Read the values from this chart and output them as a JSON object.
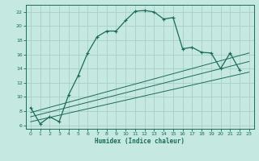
{
  "title": "",
  "xlabel": "Humidex (Indice chaleur)",
  "ylabel": "",
  "background_color": "#c5e8e0",
  "grid_color": "#a8cfc8",
  "line_color": "#1a6b5a",
  "xlim": [
    -0.5,
    23.5
  ],
  "ylim": [
    5.5,
    23
  ],
  "xticks": [
    0,
    1,
    2,
    3,
    4,
    5,
    6,
    7,
    8,
    9,
    10,
    11,
    12,
    13,
    14,
    15,
    16,
    17,
    18,
    19,
    20,
    21,
    22,
    23
  ],
  "yticks": [
    6,
    8,
    10,
    12,
    14,
    16,
    18,
    20,
    22
  ],
  "curve1_x": [
    0,
    1,
    2,
    3,
    4,
    5,
    6,
    7,
    8,
    9,
    10,
    11,
    12,
    13,
    14,
    15,
    16,
    17,
    18,
    19,
    20,
    21,
    22
  ],
  "curve1_y": [
    8.5,
    6.2,
    7.2,
    6.5,
    10.3,
    13.0,
    16.2,
    18.5,
    19.3,
    19.3,
    20.8,
    22.1,
    22.2,
    22.0,
    21.0,
    21.2,
    16.8,
    17.0,
    16.3,
    16.2,
    14.0,
    16.2,
    13.8
  ],
  "line2_x": [
    0,
    23
  ],
  "line2_y": [
    6.5,
    13.5
  ],
  "line3_x": [
    0,
    23
  ],
  "line3_y": [
    7.2,
    15.0
  ],
  "line4_x": [
    0,
    23
  ],
  "line4_y": [
    7.8,
    16.2
  ]
}
